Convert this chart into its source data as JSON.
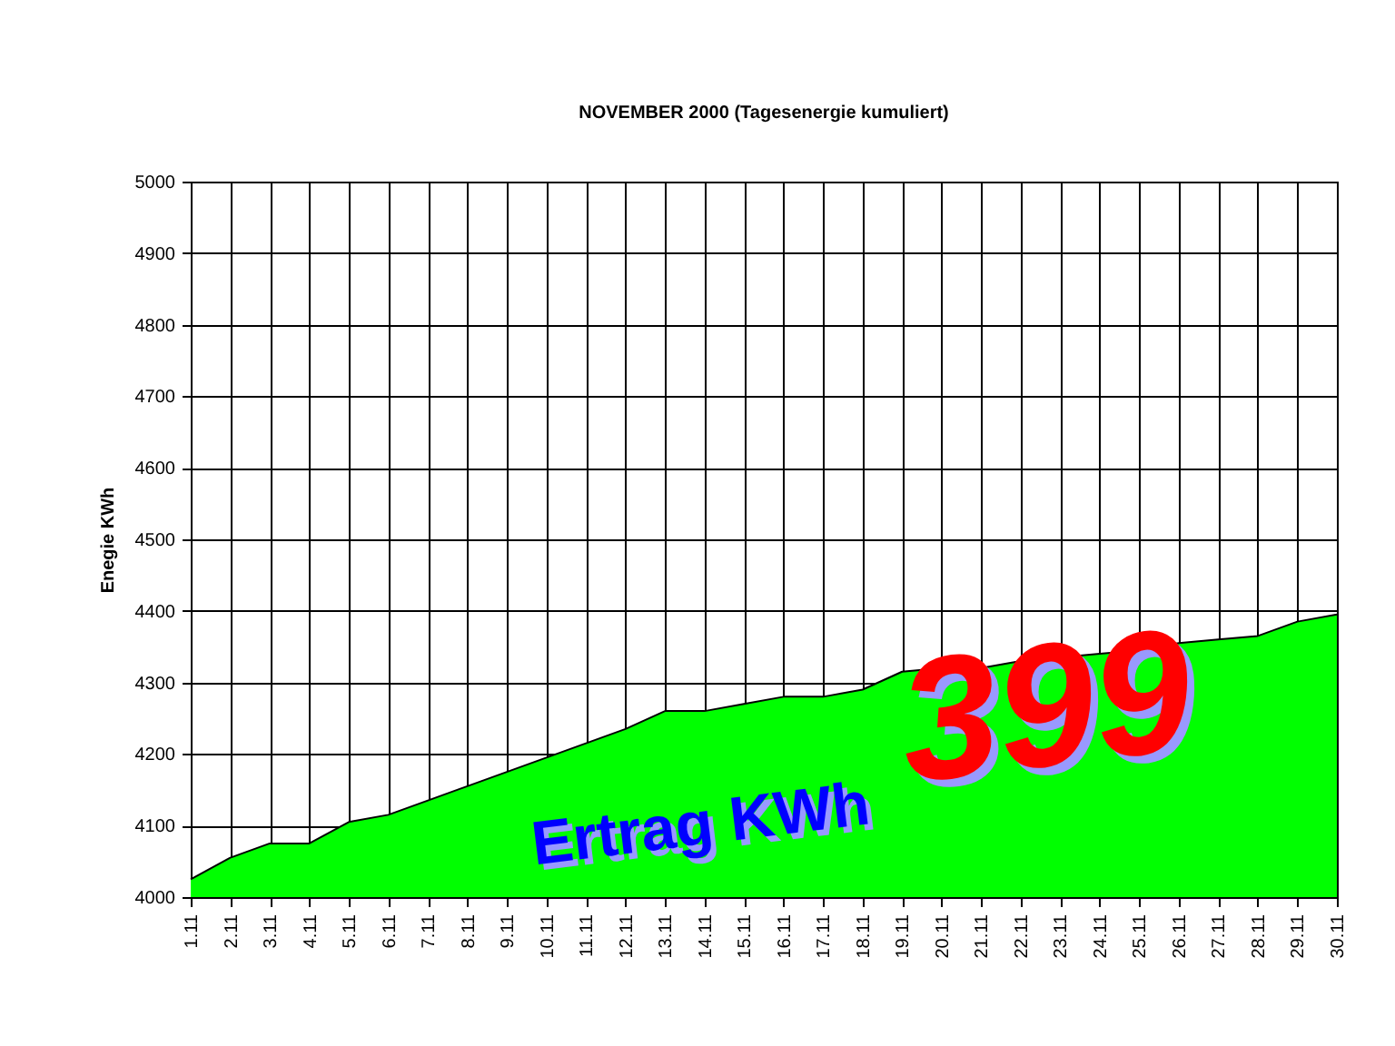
{
  "chart_data": {
    "type": "area",
    "title": "NOVEMBER 2000 (Tagesenergie kumuliert)",
    "ylabel": "Enegie KWh",
    "categories": [
      "1.11",
      "2.11",
      "3.11",
      "4.11",
      "5.11",
      "6.11",
      "7.11",
      "8.11",
      "9.11",
      "10.11",
      "11.11",
      "12.11",
      "13.11",
      "14.11",
      "15.11",
      "16.11",
      "17.11",
      "18.11",
      "19.11",
      "20.11",
      "21.11",
      "22.11",
      "23.11",
      "24.11",
      "25.11",
      "26.11",
      "27.11",
      "28.11",
      "29.11",
      "30.11"
    ],
    "series": [
      {
        "color": "#00ff00",
        "values": [
          4025,
          4055,
          4075,
          4075,
          4105,
          4115,
          4135,
          4155,
          4175,
          4195,
          4215,
          4235,
          4260,
          4260,
          4270,
          4280,
          4280,
          4290,
          4315,
          4320,
          4320,
          4330,
          4335,
          4340,
          4345,
          4355,
          4360,
          4365,
          4385,
          4395
        ]
      }
    ],
    "ylim": [
      4000,
      5000
    ],
    "yticks": [
      4000,
      4100,
      4200,
      4300,
      4400,
      4500,
      4600,
      4700,
      4800,
      4900,
      5000
    ],
    "grid": true,
    "annotations": [
      "Ertrag KWh",
      "399"
    ]
  }
}
